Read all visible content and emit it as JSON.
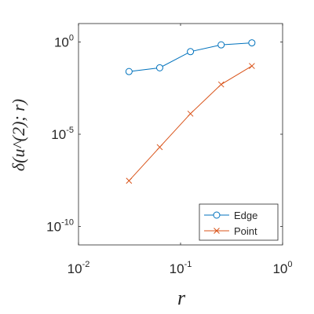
{
  "chart_data": {
    "type": "line",
    "title": "",
    "xlabel": "r",
    "ylabel": "δ(u^(2); r)",
    "xscale": "log",
    "yscale": "log",
    "xlim": [
      0.01,
      1
    ],
    "ylim": [
      1e-11,
      10
    ],
    "x_ticks": [
      {
        "value": 0.01,
        "base": "10",
        "exp": "-2"
      },
      {
        "value": 0.1,
        "base": "10",
        "exp": "-1"
      },
      {
        "value": 1,
        "base": "10",
        "exp": "0"
      }
    ],
    "y_ticks": [
      {
        "value": 1e-10,
        "base": "10",
        "exp": "-10"
      },
      {
        "value": 1e-05,
        "base": "10",
        "exp": "-5"
      },
      {
        "value": 1,
        "base": "10",
        "exp": "0"
      }
    ],
    "grid": false,
    "legend_position": "bottom-right",
    "series": [
      {
        "name": "Edge",
        "color": "#0072BD",
        "marker": "circle",
        "x": [
          0.03125,
          0.0625,
          0.125,
          0.25,
          0.5
        ],
        "y": [
          0.025,
          0.04,
          0.3,
          0.7,
          0.9
        ]
      },
      {
        "name": "Point",
        "color": "#D95319",
        "marker": "x",
        "x": [
          0.03125,
          0.0625,
          0.125,
          0.25,
          0.5
        ],
        "y": [
          3e-08,
          2e-06,
          0.00013,
          0.005,
          0.05
        ]
      }
    ]
  }
}
